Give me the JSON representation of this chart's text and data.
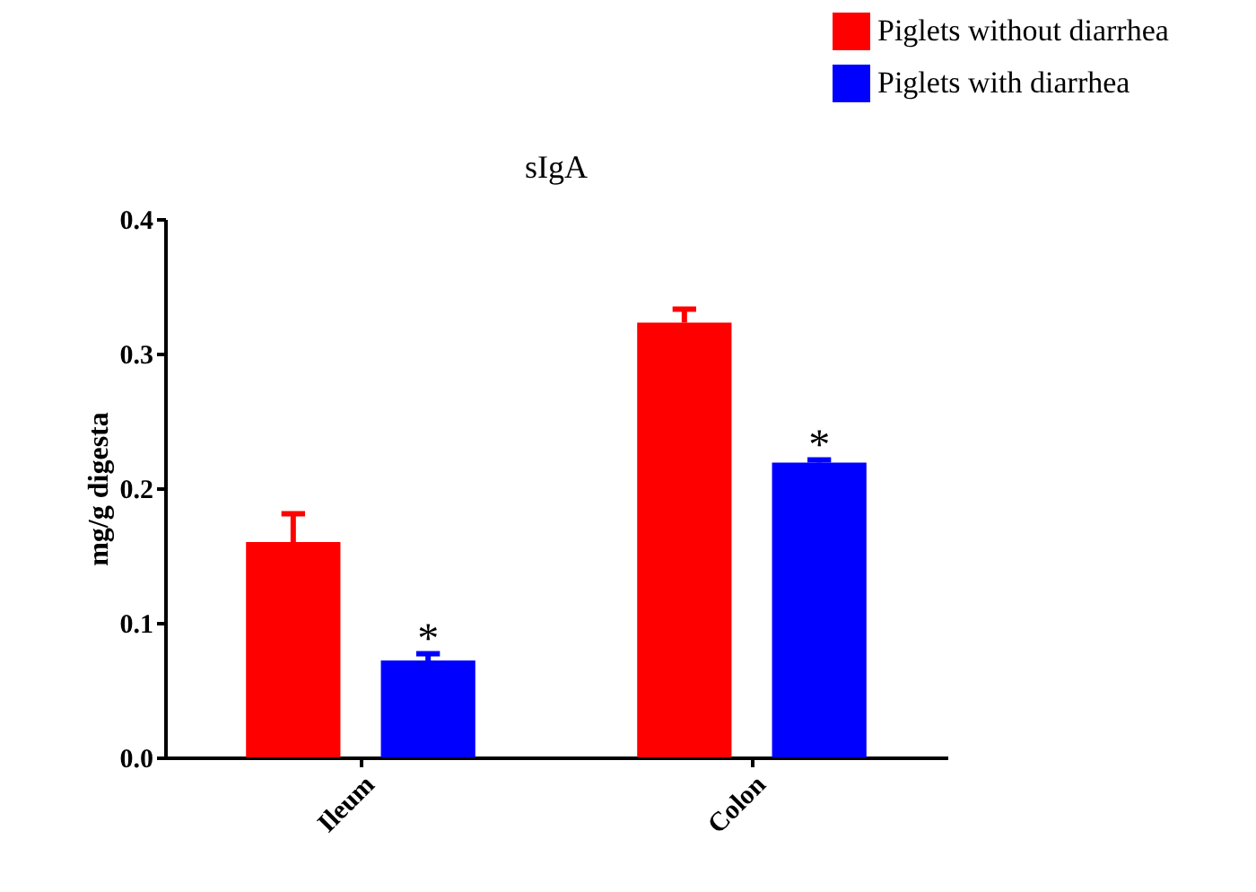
{
  "chart_data": {
    "type": "bar",
    "title": "sIgA",
    "ylabel": "mg/g digesta",
    "categories": [
      "Ileum",
      "Colon"
    ],
    "series": [
      {
        "name": "Piglets without diarrhea",
        "color": "#ff0000",
        "values": [
          0.16,
          0.323
        ],
        "errors": [
          [
            0.16,
            0.181
          ],
          [
            0.323,
            0.333
          ]
        ]
      },
      {
        "name": "Piglets with diarrhea",
        "color": "#0000ff",
        "values": [
          0.072,
          0.219
        ],
        "errors": [
          [
            0.072,
            0.077
          ],
          [
            0.219,
            0.221
          ]
        ]
      }
    ],
    "annotations": [
      "*",
      "*"
    ],
    "ylim": [
      0,
      0.4
    ],
    "yticks": [
      {
        "value": 0,
        "label": "0.0"
      },
      {
        "value": 0.1,
        "label": "0.1"
      },
      {
        "value": 0.2,
        "label": "0.2"
      },
      {
        "value": 0.3,
        "label": "0.3"
      },
      {
        "value": 0.4,
        "label": "0.4"
      }
    ],
    "grid": false,
    "legend": "top right"
  }
}
